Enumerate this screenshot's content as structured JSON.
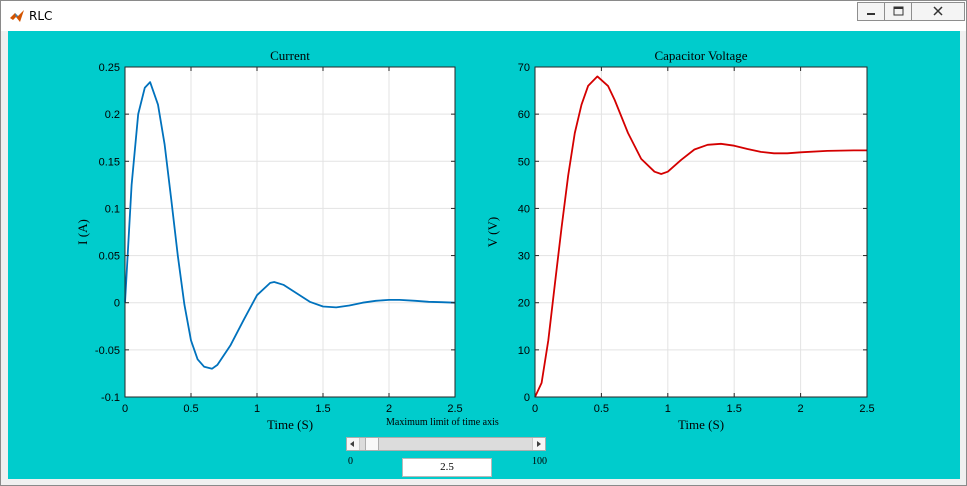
{
  "window": {
    "title": "RLC"
  },
  "colors": {
    "background": "#00cccc",
    "current_line": "#0072bd",
    "voltage_line": "#d40000"
  },
  "icons": {
    "app": "matlab-icon",
    "minimize": "minimize-icon",
    "maximize": "maximize-icon",
    "close": "close-icon"
  },
  "chart_data": [
    {
      "type": "line",
      "title": "Current",
      "xlabel": "Time (S)",
      "ylabel": "I (A)",
      "xlim": [
        0,
        2.5
      ],
      "ylim": [
        -0.1,
        0.25
      ],
      "xticks": [
        "0",
        "0.5",
        "1",
        "1.5",
        "2",
        "2.5"
      ],
      "yticks": [
        "-0.1",
        "-0.05",
        "0",
        "0.05",
        "0.1",
        "0.15",
        "0.2",
        "0.25"
      ],
      "grid": true,
      "series": [
        {
          "x": [
            0,
            0.05,
            0.1,
            0.15,
            0.19,
            0.25,
            0.3,
            0.35,
            0.4,
            0.45,
            0.5,
            0.55,
            0.6,
            0.66,
            0.7,
            0.8,
            0.9,
            1.0,
            1.1,
            1.13,
            1.2,
            1.3,
            1.4,
            1.5,
            1.6,
            1.7,
            1.8,
            1.9,
            2.0,
            2.08,
            2.2,
            2.3,
            2.4,
            2.5
          ],
          "y": [
            0,
            0.125,
            0.2,
            0.228,
            0.234,
            0.21,
            0.168,
            0.11,
            0.05,
            -0.002,
            -0.04,
            -0.06,
            -0.068,
            -0.07,
            -0.066,
            -0.045,
            -0.018,
            0.008,
            0.021,
            0.022,
            0.019,
            0.01,
            0.001,
            -0.004,
            -0.005,
            -0.003,
            0,
            0.002,
            0.003,
            0.003,
            0.002,
            0.001,
            0.0005,
            0
          ]
        }
      ]
    },
    {
      "type": "line",
      "title": "Capacitor Voltage",
      "xlabel": "Time (S)",
      "ylabel": "V (V)",
      "xlim": [
        0,
        2.5
      ],
      "ylim": [
        0,
        70
      ],
      "xticks": [
        "0",
        "0.5",
        "1",
        "1.5",
        "2",
        "2.5"
      ],
      "yticks": [
        "0",
        "10",
        "20",
        "30",
        "40",
        "50",
        "60",
        "70"
      ],
      "grid": true,
      "series": [
        {
          "x": [
            0,
            0.05,
            0.1,
            0.15,
            0.2,
            0.25,
            0.3,
            0.35,
            0.4,
            0.47,
            0.55,
            0.6,
            0.7,
            0.8,
            0.9,
            0.95,
            1.0,
            1.1,
            1.2,
            1.3,
            1.4,
            1.5,
            1.6,
            1.7,
            1.8,
            1.9,
            2.0,
            2.2,
            2.4,
            2.5
          ],
          "y": [
            0,
            3,
            12,
            24,
            36,
            47,
            56,
            62,
            66,
            68,
            66,
            63,
            56,
            50.5,
            47.8,
            47.3,
            47.8,
            50.3,
            52.5,
            53.5,
            53.7,
            53.3,
            52.6,
            52.0,
            51.7,
            51.7,
            51.9,
            52.2,
            52.3,
            52.3
          ]
        }
      ]
    }
  ],
  "slider": {
    "label": "Maximum limit of time axis",
    "min_label": "0",
    "max_label": "100",
    "min": 0,
    "max": 100,
    "value": 2.5
  },
  "edit": {
    "value": "2.5"
  }
}
